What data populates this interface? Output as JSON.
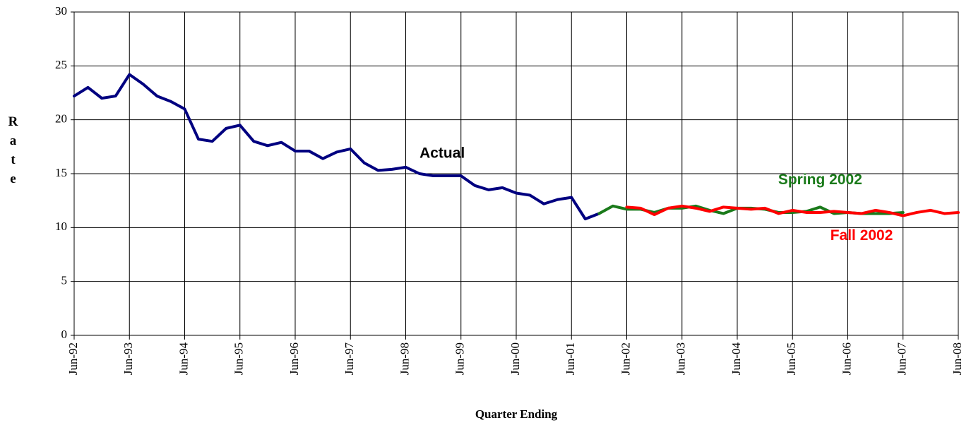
{
  "chart_data": {
    "type": "line",
    "x_label": "Quarter Ending",
    "y_label": "Rate",
    "categories": [
      "Jun-92",
      null,
      null,
      null,
      "Jun-93",
      null,
      null,
      null,
      "Jun-94",
      null,
      null,
      null,
      "Jun-95",
      null,
      null,
      null,
      "Jun-96",
      null,
      null,
      null,
      "Jun-97",
      null,
      null,
      null,
      "Jun-98",
      null,
      null,
      null,
      "Jun-99",
      null,
      null,
      null,
      "Jun-00",
      null,
      null,
      null,
      "Jun-01",
      null,
      null,
      null,
      "Jun-02",
      null,
      null,
      null,
      "Jun-03",
      null,
      null,
      null,
      "Jun-04",
      null,
      null,
      null,
      "Jun-05",
      null,
      null,
      null,
      "Jun-06",
      null,
      null,
      null,
      "Jun-07",
      null,
      null,
      null,
      "Jun-08"
    ],
    "series": [
      {
        "name": "Actual",
        "color": "#000080",
        "values": [
          22.2,
          23.0,
          22.0,
          22.2,
          24.2,
          23.3,
          22.2,
          21.7,
          21.0,
          18.2,
          18.0,
          19.2,
          19.5,
          18.0,
          17.6,
          17.9,
          17.1,
          17.1,
          16.4,
          17.0,
          17.3,
          16.0,
          15.3,
          15.4,
          15.6,
          15.0,
          14.8,
          14.8,
          14.8,
          13.9,
          13.5,
          13.7,
          13.2,
          13.0,
          12.2,
          12.6,
          12.8,
          10.8,
          11.3,
          null,
          null,
          null,
          null,
          null,
          null,
          null,
          null,
          null,
          null,
          null,
          null,
          null,
          null,
          null,
          null,
          null,
          null,
          null,
          null,
          null,
          null,
          null,
          null,
          null,
          null
        ]
      },
      {
        "name": "Spring 2002",
        "color": "#1a7a1a",
        "values": [
          null,
          null,
          null,
          null,
          null,
          null,
          null,
          null,
          null,
          null,
          null,
          null,
          null,
          null,
          null,
          null,
          null,
          null,
          null,
          null,
          null,
          null,
          null,
          null,
          null,
          null,
          null,
          null,
          null,
          null,
          null,
          null,
          null,
          null,
          null,
          null,
          null,
          null,
          11.3,
          12.0,
          11.7,
          11.7,
          11.4,
          11.8,
          11.8,
          12.0,
          11.6,
          11.3,
          11.8,
          11.8,
          11.7,
          11.4,
          11.4,
          11.5,
          11.9,
          11.3,
          11.4,
          11.3,
          11.3,
          11.3,
          11.4,
          null,
          null,
          null,
          null
        ]
      },
      {
        "name": "Fall 2002",
        "color": "#ff0000",
        "values": [
          null,
          null,
          null,
          null,
          null,
          null,
          null,
          null,
          null,
          null,
          null,
          null,
          null,
          null,
          null,
          null,
          null,
          null,
          null,
          null,
          null,
          null,
          null,
          null,
          null,
          null,
          null,
          null,
          null,
          null,
          null,
          null,
          null,
          null,
          null,
          null,
          null,
          null,
          null,
          null,
          11.9,
          11.8,
          11.2,
          11.8,
          12.0,
          11.8,
          11.5,
          11.9,
          11.8,
          11.7,
          11.8,
          11.3,
          11.6,
          11.4,
          11.4,
          11.5,
          11.4,
          11.3,
          11.6,
          11.4,
          11.1,
          11.4,
          11.6,
          11.3,
          11.4
        ]
      }
    ],
    "ylim": [
      0,
      30
    ],
    "yticks": [
      0,
      5,
      10,
      15,
      20,
      25,
      30
    ],
    "grid": true
  }
}
